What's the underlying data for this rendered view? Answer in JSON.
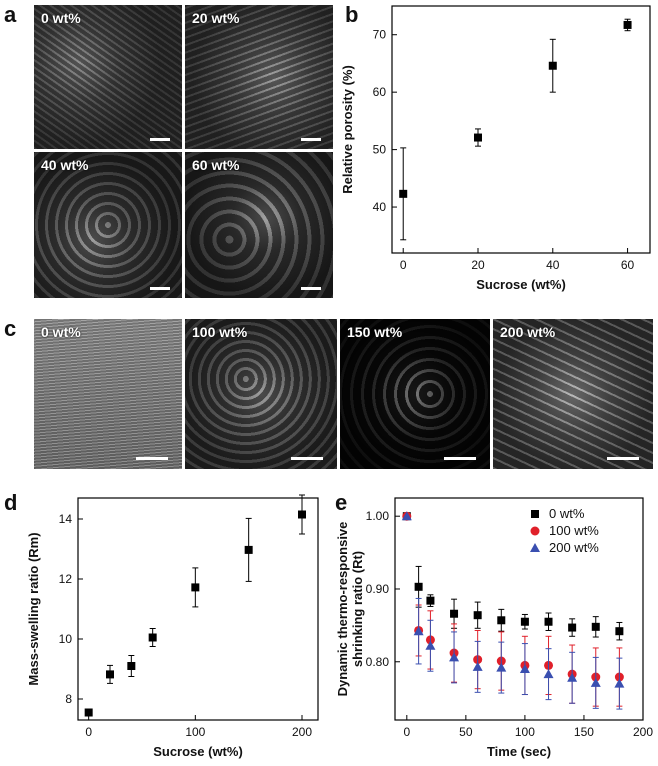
{
  "panels": {
    "a": {
      "label": "a",
      "images": [
        "0 wt%",
        "20 wt%",
        "40 wt%",
        "60 wt%"
      ]
    },
    "b": {
      "label": "b"
    },
    "c": {
      "label": "c",
      "images": [
        "0 wt%",
        "100 wt%",
        "150 wt%",
        "200 wt%"
      ]
    },
    "d": {
      "label": "d"
    },
    "e": {
      "label": "e"
    }
  },
  "chart_data": [
    {
      "id": "b",
      "type": "scatter",
      "xlabel": "Sucrose (wt%)",
      "ylabel": "Relative porosity (%)",
      "xlim": [
        -3,
        66
      ],
      "ylim": [
        32,
        75
      ],
      "xticks": [
        0,
        20,
        40,
        60
      ],
      "yticks": [
        40,
        50,
        60,
        70
      ],
      "series": [
        {
          "x": [
            0,
            20,
            40,
            60
          ],
          "y": [
            42.3,
            52.1,
            64.6,
            71.7
          ],
          "err": [
            8.0,
            1.5,
            4.6,
            1.0
          ],
          "marker": "square",
          "color": "#000000"
        }
      ]
    },
    {
      "id": "d",
      "type": "scatter",
      "xlabel": "Sucrose (wt%)",
      "ylabel": "Mass-swelling ratio (Rm)",
      "xlim": [
        -10,
        215
      ],
      "ylim": [
        7.3,
        14.7
      ],
      "xticks": [
        0,
        100,
        200
      ],
      "yticks": [
        8,
        10,
        12,
        14
      ],
      "series": [
        {
          "x": [
            0,
            20,
            40,
            60,
            100,
            150,
            200
          ],
          "y": [
            7.55,
            8.82,
            9.1,
            10.05,
            11.72,
            12.97,
            14.15
          ],
          "err": [
            0.0,
            0.3,
            0.35,
            0.3,
            0.65,
            1.05,
            0.65
          ],
          "marker": "square",
          "color": "#000000"
        }
      ]
    },
    {
      "id": "e",
      "type": "scatter",
      "xlabel": "Time (sec)",
      "ylabel_line1": "Dynamic thermo-responsive",
      "ylabel_line2": "shrinking ratio (Rt)",
      "xlim": [
        -10,
        200
      ],
      "ylim": [
        0.72,
        1.025
      ],
      "xticks": [
        0,
        50,
        100,
        150,
        200
      ],
      "yticks": [
        0.8,
        0.9,
        1.0
      ],
      "legend_position": "top-right",
      "series": [
        {
          "name": "0 wt%",
          "marker": "square",
          "color": "#000000",
          "x": [
            0,
            10,
            20,
            40,
            60,
            80,
            100,
            120,
            140,
            160,
            180
          ],
          "y": [
            1.0,
            0.903,
            0.884,
            0.866,
            0.864,
            0.857,
            0.855,
            0.855,
            0.847,
            0.848,
            0.842
          ],
          "err": [
            0.0,
            0.028,
            0.008,
            0.02,
            0.018,
            0.015,
            0.01,
            0.012,
            0.012,
            0.014,
            0.012
          ]
        },
        {
          "name": "100 wt%",
          "marker": "circle",
          "color": "#e0202a",
          "x": [
            0,
            10,
            20,
            40,
            60,
            80,
            100,
            120,
            140,
            160,
            180
          ],
          "y": [
            1.0,
            0.843,
            0.83,
            0.812,
            0.803,
            0.801,
            0.795,
            0.795,
            0.783,
            0.779,
            0.779
          ],
          "err": [
            0.0,
            0.035,
            0.04,
            0.04,
            0.04,
            0.04,
            0.04,
            0.04,
            0.04,
            0.04,
            0.04
          ]
        },
        {
          "name": "200 wt%",
          "marker": "triangle",
          "color": "#3a4fb0",
          "x": [
            0,
            10,
            20,
            40,
            60,
            80,
            100,
            120,
            140,
            160,
            180
          ],
          "y": [
            1.0,
            0.842,
            0.822,
            0.806,
            0.793,
            0.792,
            0.79,
            0.783,
            0.778,
            0.771,
            0.77
          ],
          "err": [
            0.0,
            0.045,
            0.035,
            0.035,
            0.035,
            0.035,
            0.035,
            0.035,
            0.035,
            0.035,
            0.035
          ]
        }
      ]
    }
  ]
}
